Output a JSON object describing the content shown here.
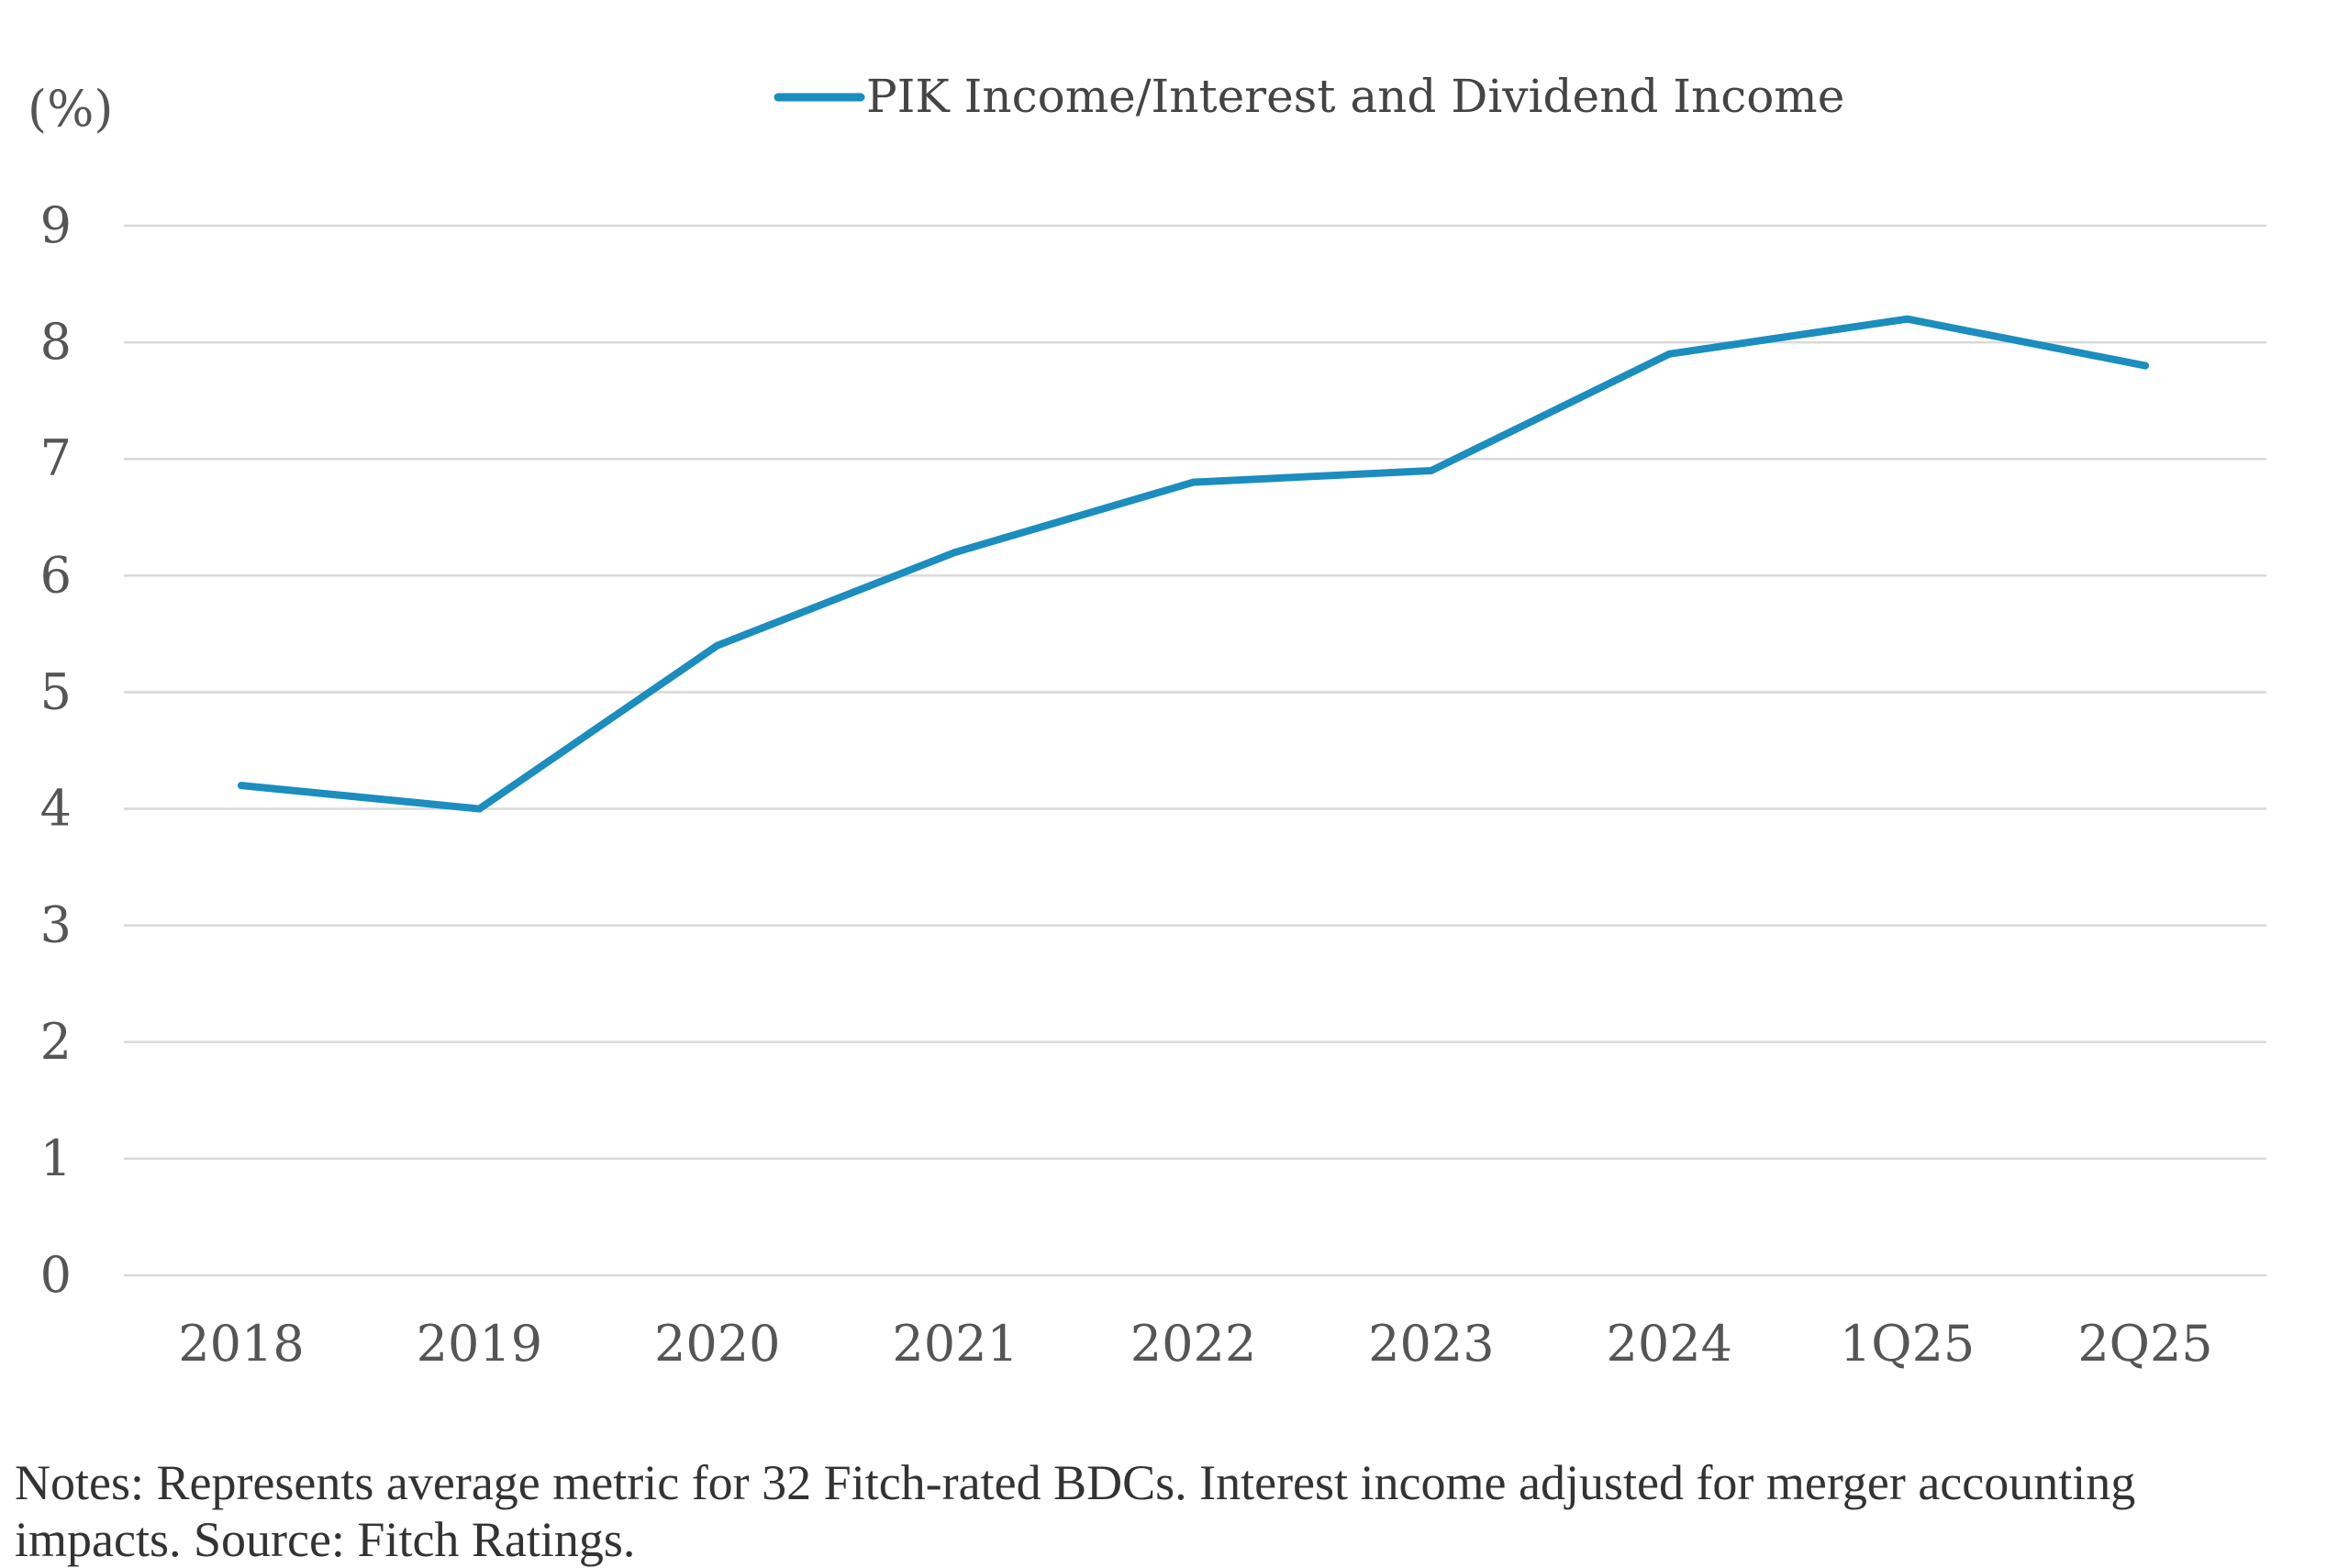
{
  "chart_data": {
    "type": "line",
    "title": "",
    "ylabel": "(%)",
    "xlabel": "",
    "categories": [
      "2018",
      "2019",
      "2020",
      "2021",
      "2022",
      "2023",
      "2024",
      "1Q25",
      "2Q25"
    ],
    "yticks": [
      "0",
      "1",
      "2",
      "3",
      "4",
      "5",
      "6",
      "7",
      "8",
      "9"
    ],
    "ylim": [
      0,
      9
    ],
    "grid": true,
    "legend_position": "top-center",
    "series": [
      {
        "name": "PIK Income/Interest and Dividend Income",
        "color": "#1B8DBE",
        "values": [
          4.2,
          4.0,
          5.4,
          6.2,
          6.8,
          6.9,
          7.9,
          8.2,
          7.8
        ]
      }
    ]
  },
  "notes": "Notes: Represents average metric for 32 Fitch-rated BDCs. Interest income adjusted for merger accounting impacts. Source: Fitch Ratings."
}
